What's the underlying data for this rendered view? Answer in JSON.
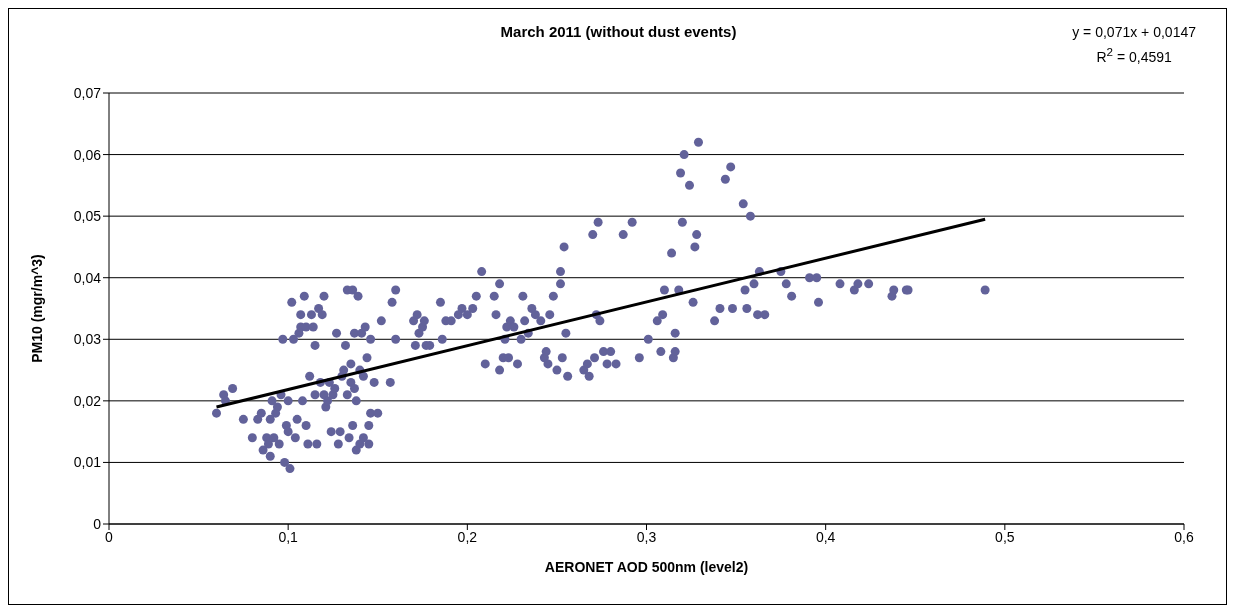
{
  "chart_data": {
    "type": "scatter",
    "title": "March 2011 (without dust events)",
    "xlabel": "AERONET AOD 500nm (level2)",
    "ylabel": "PM10 (mgr/m^3)",
    "annotations": [
      "y = 0,071x + 0,0147",
      "R$^{2}$ = 0,4591"
    ],
    "xlim": [
      0,
      0.6
    ],
    "xticks": [
      0,
      {
        "value": 0.1,
        "label": "0,1"
      },
      {
        "value": 0.2,
        "label": "0,2"
      },
      {
        "value": 0.3,
        "label": "0,3"
      },
      {
        "value": 0.4,
        "label": "0,4"
      },
      {
        "value": 0.5,
        "label": "0,5"
      },
      {
        "value": 0.6,
        "label": "0,6"
      }
    ],
    "ylim": [
      0,
      0.07
    ],
    "yticks": [
      0,
      {
        "value": 0.01,
        "label": "0,01"
      },
      {
        "value": 0.02,
        "label": "0,02"
      },
      {
        "value": 0.03,
        "label": "0,03"
      },
      {
        "value": 0.04,
        "label": "0,04"
      },
      {
        "value": 0.05,
        "label": "0,05"
      },
      {
        "value": 0.06,
        "label": "0,06"
      },
      {
        "value": 0.07,
        "label": "0,07"
      }
    ],
    "grid": "y",
    "series": [
      {
        "marker": "circle",
        "color": "#62629a",
        "x": [
          0.06,
          0.064,
          0.065,
          0.069,
          0.075,
          0.08,
          0.083,
          0.085,
          0.086,
          0.088,
          0.089,
          0.09,
          0.09,
          0.091,
          0.092,
          0.093,
          0.094,
          0.095,
          0.096,
          0.097,
          0.098,
          0.099,
          0.1,
          0.1,
          0.101,
          0.102,
          0.103,
          0.104,
          0.105,
          0.106,
          0.107,
          0.107,
          0.108,
          0.109,
          0.11,
          0.11,
          0.111,
          0.112,
          0.113,
          0.114,
          0.115,
          0.115,
          0.116,
          0.117,
          0.118,
          0.119,
          0.12,
          0.12,
          0.121,
          0.122,
          0.123,
          0.124,
          0.125,
          0.126,
          0.127,
          0.128,
          0.129,
          0.13,
          0.131,
          0.132,
          0.133,
          0.133,
          0.134,
          0.135,
          0.135,
          0.136,
          0.136,
          0.137,
          0.137,
          0.138,
          0.138,
          0.139,
          0.14,
          0.14,
          0.141,
          0.142,
          0.142,
          0.143,
          0.144,
          0.145,
          0.145,
          0.146,
          0.146,
          0.148,
          0.15,
          0.152,
          0.157,
          0.158,
          0.16,
          0.16,
          0.17,
          0.171,
          0.172,
          0.173,
          0.175,
          0.176,
          0.177,
          0.179,
          0.185,
          0.186,
          0.188,
          0.191,
          0.195,
          0.197,
          0.2,
          0.203,
          0.205,
          0.208,
          0.21,
          0.215,
          0.216,
          0.218,
          0.218,
          0.22,
          0.221,
          0.222,
          0.223,
          0.224,
          0.226,
          0.228,
          0.23,
          0.231,
          0.232,
          0.234,
          0.236,
          0.238,
          0.241,
          0.243,
          0.244,
          0.245,
          0.246,
          0.248,
          0.25,
          0.252,
          0.252,
          0.253,
          0.254,
          0.256,
          0.255,
          0.265,
          0.267,
          0.268,
          0.27,
          0.271,
          0.272,
          0.273,
          0.274,
          0.276,
          0.278,
          0.28,
          0.283,
          0.287,
          0.292,
          0.296,
          0.301,
          0.306,
          0.308,
          0.309,
          0.31,
          0.314,
          0.315,
          0.316,
          0.316,
          0.318,
          0.319,
          0.32,
          0.321,
          0.324,
          0.326,
          0.327,
          0.328,
          0.329,
          0.338,
          0.341,
          0.344,
          0.347,
          0.348,
          0.354,
          0.355,
          0.356,
          0.358,
          0.36,
          0.362,
          0.363,
          0.366,
          0.375,
          0.378,
          0.381,
          0.391,
          0.395,
          0.396,
          0.408,
          0.416,
          0.418,
          0.424,
          0.437,
          0.438,
          0.445,
          0.446,
          0.489
        ],
        "values": [
          0.018,
          0.021,
          0.02,
          0.022,
          0.017,
          0.014,
          0.017,
          0.018,
          0.012,
          0.014,
          0.013,
          0.017,
          0.011,
          0.02,
          0.014,
          0.018,
          0.019,
          0.013,
          0.021,
          0.03,
          0.01,
          0.016,
          0.015,
          0.02,
          0.009,
          0.036,
          0.03,
          0.014,
          0.017,
          0.031,
          0.034,
          0.032,
          0.02,
          0.037,
          0.016,
          0.032,
          0.013,
          0.024,
          0.034,
          0.032,
          0.029,
          0.021,
          0.013,
          0.035,
          0.023,
          0.034,
          0.037,
          0.021,
          0.019,
          0.02,
          0.023,
          0.015,
          0.021,
          0.022,
          0.031,
          0.013,
          0.015,
          0.024,
          0.025,
          0.029,
          0.038,
          0.021,
          0.014,
          0.026,
          0.023,
          0.038,
          0.016,
          0.022,
          0.031,
          0.012,
          0.02,
          0.037,
          0.025,
          0.013,
          0.031,
          0.014,
          0.024,
          0.032,
          0.027,
          0.013,
          0.016,
          0.018,
          0.03,
          0.023,
          0.018,
          0.033,
          0.023,
          0.036,
          0.038,
          0.03,
          0.033,
          0.029,
          0.034,
          0.031,
          0.032,
          0.033,
          0.029,
          0.029,
          0.036,
          0.03,
          0.033,
          0.033,
          0.034,
          0.035,
          0.034,
          0.035,
          0.037,
          0.041,
          0.026,
          0.037,
          0.034,
          0.039,
          0.025,
          0.027,
          0.03,
          0.032,
          0.027,
          0.033,
          0.032,
          0.026,
          0.03,
          0.037,
          0.033,
          0.031,
          0.035,
          0.034,
          0.033,
          0.027,
          0.028,
          0.026,
          0.034,
          0.037,
          0.025,
          0.041,
          0.039,
          0.027,
          0.045,
          0.024,
          0.031,
          0.025,
          0.026,
          0.024,
          0.047,
          0.027,
          0.034,
          0.049,
          0.033,
          0.028,
          0.026,
          0.028,
          0.026,
          0.047,
          0.049,
          0.027,
          0.03,
          0.033,
          0.028,
          0.034,
          0.038,
          0.044,
          0.027,
          0.028,
          0.031,
          0.038,
          0.057,
          0.049,
          0.06,
          0.055,
          0.036,
          0.045,
          0.047,
          0.062,
          0.033,
          0.035,
          0.056,
          0.058,
          0.035,
          0.052,
          0.038,
          0.035,
          0.05,
          0.039,
          0.034,
          0.041,
          0.034,
          0.041,
          0.039,
          0.037,
          0.04,
          0.04,
          0.036,
          0.039,
          0.038,
          0.039,
          0.039,
          0.037,
          0.038,
          0.038,
          0.038,
          0.038
        ]
      },
      {
        "type": "line",
        "color": "#000000",
        "x": [
          0.06,
          0.489
        ],
        "values": [
          0.019,
          0.0495
        ]
      }
    ]
  }
}
